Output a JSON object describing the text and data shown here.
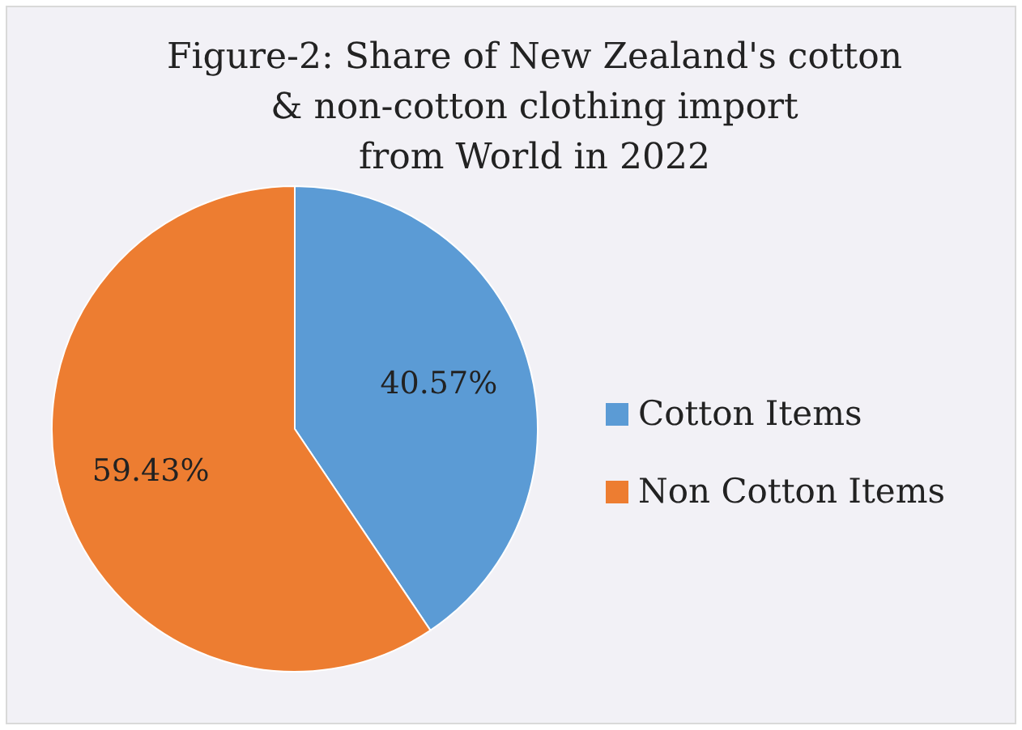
{
  "chart_data": {
    "type": "pie",
    "title": "Figure-2: Share of New Zealand's cotton\n& non-cotton clothing import\nfrom World in 2022",
    "categories": [
      "Cotton Items",
      "Non Cotton Items"
    ],
    "values": [
      40.57,
      59.43
    ],
    "colors": [
      "#5b9bd5",
      "#ed7d31"
    ],
    "value_labels": [
      "40.57%",
      "59.43%"
    ],
    "legend": "right"
  }
}
